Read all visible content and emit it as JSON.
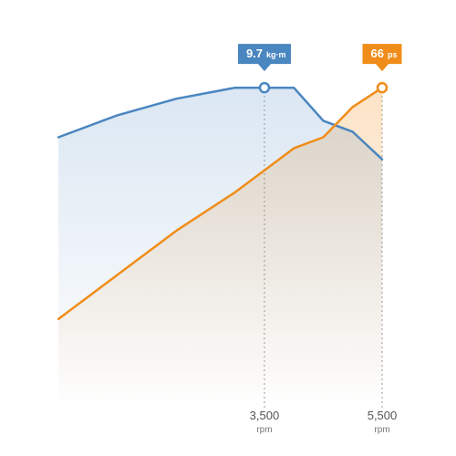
{
  "chart_data": {
    "type": "line",
    "x": [
      0,
      1000,
      2000,
      3000,
      3500,
      4000,
      4500,
      5000,
      5500
    ],
    "xlim": [
      -250,
      5500
    ],
    "series": [
      {
        "key": "torque",
        "color": "#4a86c0",
        "values": [
          0.82,
          0.9,
          0.96,
          1.0,
          1.0,
          1.0,
          0.88,
          0.84,
          0.74
        ]
      },
      {
        "key": "power",
        "color": "#f08d1a",
        "values": [
          0.16,
          0.32,
          0.48,
          0.62,
          0.7,
          0.78,
          0.82,
          0.93,
          1.0
        ]
      }
    ],
    "ylim": [
      0,
      1.1
    ],
    "callouts": [
      {
        "series": "torque",
        "x": 3500,
        "value": "9.7",
        "unit": "kg·m",
        "color": "#4a86c0"
      },
      {
        "series": "power",
        "x": 5500,
        "value": "66",
        "unit": "ps",
        "color": "#f08d1a"
      }
    ],
    "x_ticks": [
      {
        "x": 3500,
        "value": "3,500",
        "unit": "rpm"
      },
      {
        "x": 5500,
        "value": "5,500",
        "unit": "rpm"
      }
    ]
  }
}
